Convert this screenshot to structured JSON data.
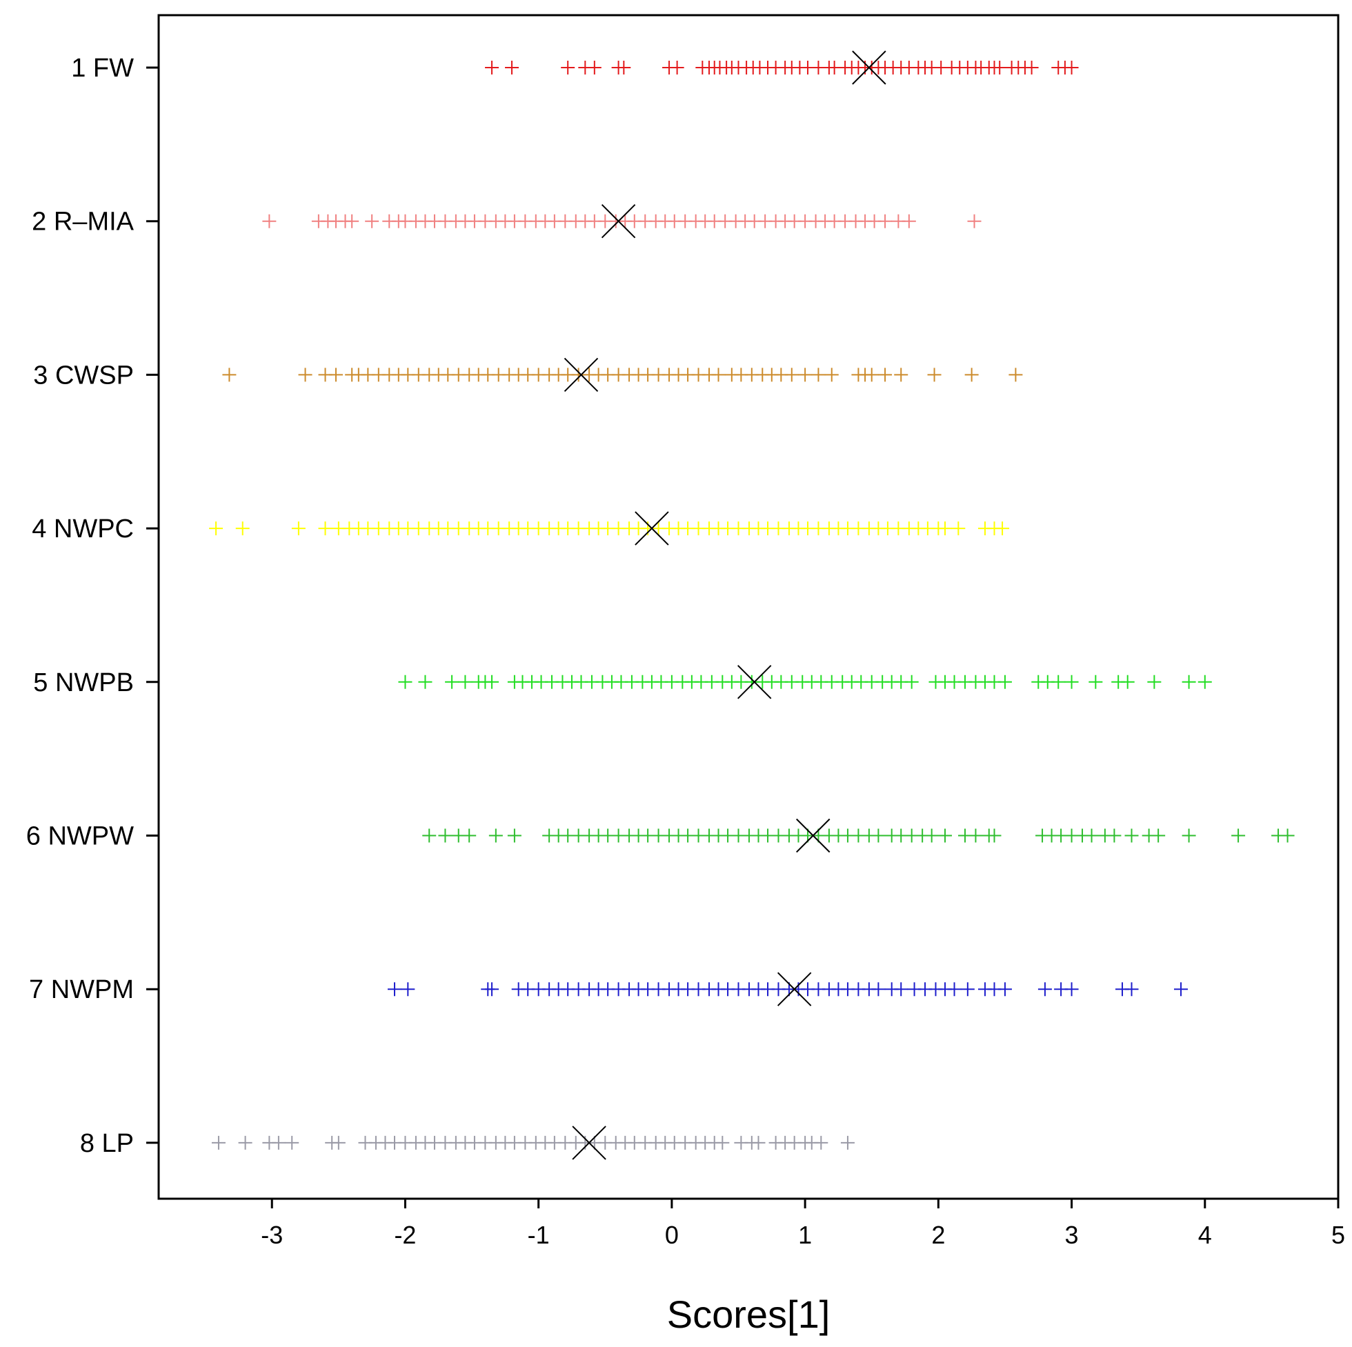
{
  "chart_data": {
    "type": "scatter",
    "title": "",
    "xlabel": "Scores[1]",
    "ylabel": "",
    "xlim": [
      -3.85,
      5
    ],
    "xticks": [
      "-3",
      "-2",
      "-1",
      "0",
      "1",
      "2",
      "3",
      "4",
      "5"
    ],
    "grid": false,
    "legend": "none",
    "mean_marker": "x",
    "mean_color": "#000000",
    "groups": [
      {
        "label": "1 FW",
        "color": "#e31a1c",
        "mean": 1.48,
        "points": [
          -1.35,
          -1.2,
          -0.78,
          -0.65,
          -0.58,
          -0.4,
          -0.36,
          -0.02,
          0.04,
          0.23,
          0.28,
          0.32,
          0.36,
          0.41,
          0.45,
          0.5,
          0.56,
          0.61,
          0.66,
          0.72,
          0.78,
          0.85,
          0.9,
          0.96,
          1.02,
          1.1,
          1.18,
          1.22,
          1.3,
          1.35,
          1.4,
          1.45,
          1.5,
          1.55,
          1.6,
          1.66,
          1.72,
          1.78,
          1.85,
          1.9,
          1.95,
          2.02,
          2.1,
          2.16,
          2.22,
          2.28,
          2.32,
          2.38,
          2.42,
          2.46,
          2.55,
          2.6,
          2.65,
          2.7,
          2.9,
          2.95,
          3.0
        ]
      },
      {
        "label": "2 R–MIA",
        "color": "#f08080",
        "mean": -0.4,
        "points": [
          -3.02,
          -2.65,
          -2.58,
          -2.52,
          -2.45,
          -2.4,
          -2.25,
          -2.12,
          -2.05,
          -2.0,
          -1.92,
          -1.85,
          -1.78,
          -1.7,
          -1.62,
          -1.55,
          -1.48,
          -1.4,
          -1.32,
          -1.25,
          -1.18,
          -1.1,
          -1.02,
          -0.95,
          -0.88,
          -0.8,
          -0.72,
          -0.65,
          -0.58,
          -0.5,
          -0.42,
          -0.35,
          -0.28,
          -0.2,
          -0.12,
          -0.05,
          0.02,
          0.1,
          0.18,
          0.25,
          0.32,
          0.4,
          0.48,
          0.55,
          0.62,
          0.7,
          0.78,
          0.85,
          0.92,
          1.0,
          1.08,
          1.15,
          1.22,
          1.3,
          1.38,
          1.45,
          1.52,
          1.6,
          1.7,
          1.78,
          2.27
        ]
      },
      {
        "label": "3 CWSP",
        "color": "#cc8b2c",
        "mean": -0.68,
        "points": [
          -3.32,
          -2.75,
          -2.6,
          -2.52,
          -2.4,
          -2.35,
          -2.28,
          -2.2,
          -2.12,
          -2.05,
          -1.98,
          -1.9,
          -1.82,
          -1.75,
          -1.68,
          -1.6,
          -1.52,
          -1.45,
          -1.38,
          -1.3,
          -1.22,
          -1.15,
          -1.08,
          -1.0,
          -0.92,
          -0.85,
          -0.78,
          -0.7,
          -0.62,
          -0.55,
          -0.48,
          -0.4,
          -0.32,
          -0.25,
          -0.18,
          -0.1,
          -0.02,
          0.05,
          0.12,
          0.2,
          0.28,
          0.35,
          0.45,
          0.52,
          0.6,
          0.68,
          0.75,
          0.82,
          0.9,
          1.0,
          1.1,
          1.2,
          1.4,
          1.45,
          1.5,
          1.6,
          1.72,
          1.97,
          2.25,
          2.58
        ]
      },
      {
        "label": "4 NWPC",
        "color": "#ffff00",
        "mean": -0.15,
        "points": [
          -3.42,
          -3.22,
          -2.8,
          -2.6,
          -2.5,
          -2.42,
          -2.35,
          -2.28,
          -2.2,
          -2.12,
          -2.05,
          -1.98,
          -1.9,
          -1.82,
          -1.75,
          -1.68,
          -1.6,
          -1.52,
          -1.45,
          -1.38,
          -1.3,
          -1.22,
          -1.15,
          -1.08,
          -1.0,
          -0.92,
          -0.85,
          -0.78,
          -0.7,
          -0.62,
          -0.55,
          -0.48,
          -0.4,
          -0.32,
          -0.25,
          -0.18,
          -0.1,
          -0.02,
          0.05,
          0.12,
          0.2,
          0.28,
          0.35,
          0.42,
          0.5,
          0.58,
          0.65,
          0.72,
          0.8,
          0.88,
          0.95,
          1.02,
          1.1,
          1.18,
          1.25,
          1.32,
          1.4,
          1.48,
          1.55,
          1.62,
          1.7,
          1.78,
          1.85,
          1.92,
          2.0,
          2.05,
          2.15,
          2.35,
          2.42,
          2.48
        ]
      },
      {
        "label": "5 NWPB",
        "color": "#22dd22",
        "mean": 0.62,
        "points": [
          -2.0,
          -1.85,
          -1.65,
          -1.55,
          -1.45,
          -1.4,
          -1.35,
          -1.18,
          -1.12,
          -1.05,
          -0.98,
          -0.9,
          -0.82,
          -0.75,
          -0.68,
          -0.6,
          -0.52,
          -0.45,
          -0.38,
          -0.3,
          -0.22,
          -0.15,
          -0.08,
          0.0,
          0.08,
          0.15,
          0.22,
          0.3,
          0.38,
          0.45,
          0.52,
          0.6,
          0.68,
          0.75,
          0.82,
          0.9,
          0.98,
          1.05,
          1.12,
          1.2,
          1.28,
          1.35,
          1.42,
          1.5,
          1.58,
          1.65,
          1.72,
          1.8,
          1.98,
          2.05,
          2.12,
          2.2,
          2.28,
          2.35,
          2.42,
          2.5,
          2.75,
          2.82,
          2.9,
          3.0,
          3.18,
          3.35,
          3.42,
          3.62,
          3.88,
          4.0
        ]
      },
      {
        "label": "6 NWPW",
        "color": "#2ebd2e",
        "mean": 1.06,
        "points": [
          -1.82,
          -1.7,
          -1.6,
          -1.52,
          -1.32,
          -1.18,
          -0.92,
          -0.85,
          -0.78,
          -0.7,
          -0.62,
          -0.55,
          -0.48,
          -0.4,
          -0.32,
          -0.25,
          -0.18,
          -0.1,
          -0.02,
          0.05,
          0.12,
          0.2,
          0.28,
          0.35,
          0.42,
          0.5,
          0.58,
          0.65,
          0.72,
          0.8,
          0.88,
          0.95,
          1.02,
          1.1,
          1.18,
          1.25,
          1.32,
          1.4,
          1.48,
          1.55,
          1.65,
          1.72,
          1.8,
          1.88,
          1.95,
          2.05,
          2.2,
          2.28,
          2.38,
          2.42,
          2.78,
          2.85,
          2.92,
          3.0,
          3.08,
          3.15,
          3.25,
          3.32,
          3.45,
          3.58,
          3.65,
          3.88,
          4.25,
          4.55,
          4.62
        ]
      },
      {
        "label": "7 NWPM",
        "color": "#1e1ecc",
        "mean": 0.92,
        "points": [
          -2.08,
          -1.98,
          -1.38,
          -1.35,
          -1.15,
          -1.08,
          -1.0,
          -0.92,
          -0.85,
          -0.78,
          -0.7,
          -0.62,
          -0.55,
          -0.48,
          -0.4,
          -0.32,
          -0.25,
          -0.18,
          -0.1,
          -0.02,
          0.05,
          0.12,
          0.2,
          0.28,
          0.35,
          0.42,
          0.5,
          0.58,
          0.65,
          0.72,
          0.8,
          0.88,
          0.95,
          1.02,
          1.1,
          1.18,
          1.25,
          1.32,
          1.4,
          1.48,
          1.55,
          1.65,
          1.72,
          1.82,
          1.9,
          1.98,
          2.05,
          2.12,
          2.22,
          2.35,
          2.42,
          2.5,
          2.8,
          2.92,
          3.0,
          3.38,
          3.45,
          3.82
        ]
      },
      {
        "label": "8 LP",
        "color": "#9a9aa6",
        "mean": -0.62,
        "points": [
          -3.4,
          -3.2,
          -3.02,
          -2.95,
          -2.85,
          -2.55,
          -2.5,
          -2.3,
          -2.22,
          -2.15,
          -2.08,
          -2.0,
          -1.92,
          -1.85,
          -1.78,
          -1.7,
          -1.62,
          -1.55,
          -1.48,
          -1.4,
          -1.32,
          -1.25,
          -1.18,
          -1.1,
          -1.02,
          -0.95,
          -0.88,
          -0.8,
          -0.72,
          -0.65,
          -0.58,
          -0.5,
          -0.42,
          -0.35,
          -0.28,
          -0.2,
          -0.12,
          -0.05,
          0.02,
          0.1,
          0.18,
          0.25,
          0.32,
          0.38,
          0.52,
          0.6,
          0.65,
          0.78,
          0.85,
          0.92,
          1.0,
          1.05,
          1.12,
          1.32
        ]
      }
    ]
  }
}
